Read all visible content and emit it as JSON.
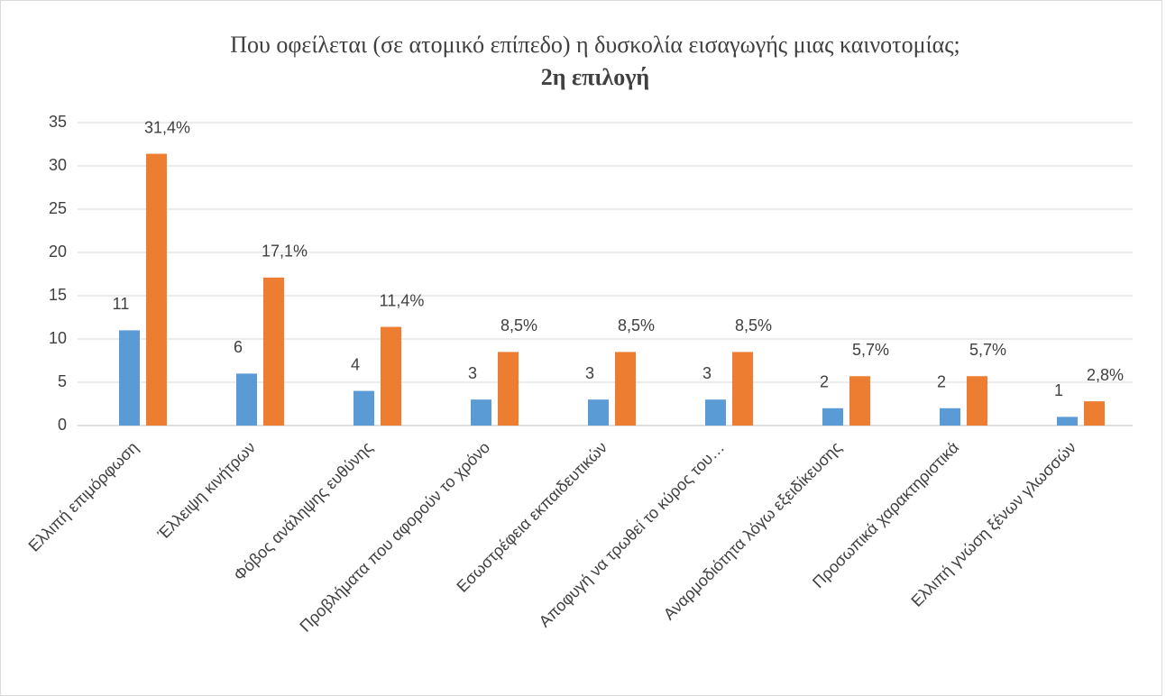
{
  "chart_data": {
    "type": "bar",
    "title": "Που οφείλεται (σε ατομικό επίπεδο) η δυσκολία εισαγωγής μιας καινοτομίας;",
    "subtitle": "2η επιλογή",
    "categories": [
      "Ελλιπή επιμόρφωση",
      "Έλλειψη κινήτρων",
      "Φόβος ανάληψης ευθύνης",
      "Προβλήματα που αφορούν το χρόνο",
      "Εσωστρέφεια εκπαιδευτικών",
      "Αποφυγή να τρωθεί το κύρος του…",
      "Αναρμοδιότητα λόγω εξειδίκευσης",
      "Προσωπικά χαρακτηριστικά",
      "Ελλιπή γνώση ξένων γλωσσών"
    ],
    "series": [
      {
        "color": "#5b9bd5",
        "values": [
          11,
          6,
          4,
          3,
          3,
          3,
          2,
          2,
          1
        ]
      },
      {
        "color": "#ed7d31",
        "values": [
          31.4,
          17.1,
          11.4,
          8.5,
          8.5,
          8.5,
          5.7,
          5.7,
          2.8
        ],
        "value_labels": [
          "31,4%",
          "17,1%",
          "11,4%",
          "8,5%",
          "8,5%",
          "8,5%",
          "5,7%",
          "5,7%",
          "2,8%"
        ]
      }
    ],
    "ylim": [
      0,
      35
    ],
    "yticks": [
      0,
      5,
      10,
      15,
      20,
      25,
      30,
      35
    ],
    "grid": true
  }
}
